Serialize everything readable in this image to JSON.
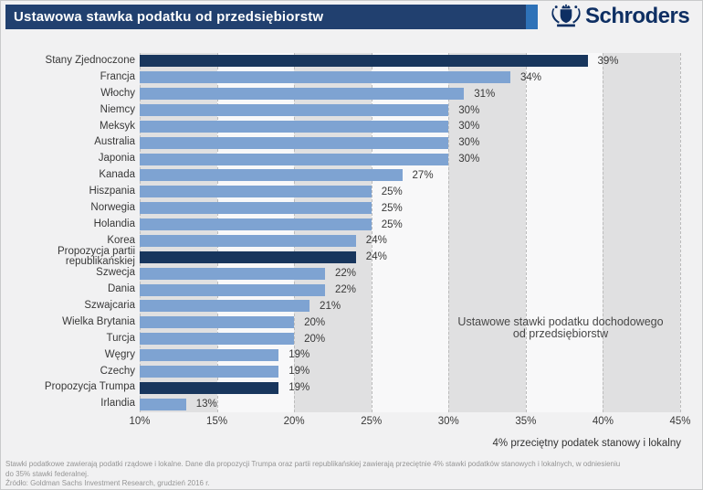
{
  "header": {
    "title": "Ustawowa stawka podatku od przedsiębiorstw",
    "brand": "Schroders"
  },
  "chart_data": {
    "type": "bar",
    "orientation": "horizontal",
    "title": "Ustawowa stawka podatku od przedsiębiorstw",
    "categories": [
      "Stany Zjednoczone",
      "Francja",
      "Włochy",
      "Niemcy",
      "Meksyk",
      "Australia",
      "Japonia",
      "Kanada",
      "Hiszpania",
      "Norwegia",
      "Holandia",
      "Korea",
      "Propozycja partii republikańskiej",
      "Szwecja",
      "Dania",
      "Szwajcaria",
      "Wielka Brytania",
      "Turcja",
      "Węgry",
      "Czechy",
      "Propozycja Trumpa",
      "Irlandia"
    ],
    "values": [
      39,
      34,
      31,
      30,
      30,
      30,
      30,
      27,
      25,
      25,
      25,
      24,
      24,
      22,
      22,
      21,
      20,
      20,
      19,
      19,
      19,
      13
    ],
    "value_labels": [
      "39%",
      "34%",
      "31%",
      "30%",
      "30%",
      "30%",
      "30%",
      "27%",
      "25%",
      "25%",
      "25%",
      "24%",
      "24%",
      "22%",
      "22%",
      "21%",
      "20%",
      "20%",
      "19%",
      "19%",
      "19%",
      "13%"
    ],
    "highlighted_indices": [
      0,
      12,
      20
    ],
    "xlim": [
      10,
      45
    ],
    "xticks": [
      "10%",
      "15%",
      "20%",
      "25%",
      "30%",
      "35%",
      "40%",
      "45%"
    ],
    "xtick_values": [
      10,
      15,
      20,
      25,
      30,
      35,
      40,
      45
    ],
    "xlabel": "4% przeciętny podatek stanowy i lokalny",
    "grid": "vertical dashed lines every 5%, alternating gray/white background bands starting gray at 10-15%",
    "legend": "none",
    "annotation": {
      "lines": [
        "Ustawowe stawki podatku dochodowego",
        "od przedsiębiorstw"
      ]
    },
    "colors": {
      "bar": "#7ea3d2",
      "bar_highlight": "#18365d",
      "band_gray": "#e0e0e1",
      "band_white": "#f8f8f9",
      "header_navy": "#21406f",
      "header_accent": "#2e72b8",
      "brand_navy": "#0e2f63"
    }
  },
  "footer": {
    "lines": [
      "Stawki podatkowe zawierają podatki rządowe i lokalne. Dane dla propozycji Trumpa oraz partii republikańskiej zawierają przeciętnie 4% stawki podatków stanowych i lokalnych, w odniesieniu",
      "do 35% stawki federalnej.",
      "Źródło: Goldman Sachs Investment Research, grudzień 2016 r."
    ]
  }
}
